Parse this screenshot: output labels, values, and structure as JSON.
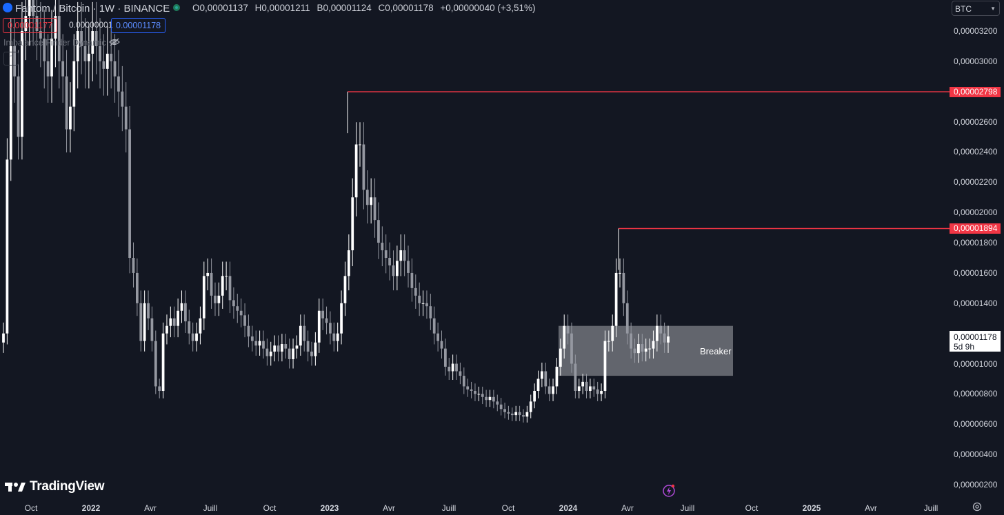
{
  "header": {
    "symbol_title": "Fantom / Bitcoin · 1W · BINANCE",
    "ohlc": {
      "open": "O0,00001137",
      "high": "H0,00001211",
      "low": "B0,00001124",
      "close": "C0,00001178",
      "change": "+0,00000040 (+3,51%)"
    }
  },
  "trade": {
    "sell_price": "0.00001177",
    "spread": "0.00000001",
    "buy_price": "0.00001178"
  },
  "indicator": {
    "name": "Imbalance Finder Dynamic"
  },
  "currency_selector": {
    "value": "BTC"
  },
  "y_axis": {
    "ticks": [
      "0,00003200",
      "0,00003000",
      "0,00002600",
      "0,00002400",
      "0,00002200",
      "0,00002000",
      "0,00001800",
      "0,00001600",
      "0,00001400",
      "0,00001000",
      "0,00000800",
      "0,00000600",
      "0,00000400",
      "0,00000200"
    ],
    "high_tag_1": "0,00002798",
    "high_tag_2": "0,00001894",
    "current_price": "0,00001178",
    "countdown": "5d 9h"
  },
  "x_axis": {
    "labels": [
      "Oct",
      "2022",
      "Avr",
      "Juill",
      "Oct",
      "2023",
      "Avr",
      "Juill",
      "Oct",
      "2024",
      "Avr",
      "Juill",
      "Oct",
      "2025",
      "Avr",
      "Juill"
    ]
  },
  "annotation": {
    "breaker_label": "Breaker"
  },
  "branding": {
    "logo_text": "TradingView"
  },
  "colors": {
    "background": "#131722",
    "bull": "#ffffff",
    "bear": "#9598a1",
    "level_line": "#f23645",
    "zone_fill": "#cfd1d6"
  },
  "icons": [
    "currency-chevron-icon",
    "visibility-off-icon",
    "collapse-chevron-icon",
    "lightning-icon",
    "settings-icon",
    "tradingview-logo-icon"
  ],
  "chart_data": {
    "type": "candlestick",
    "timeframe": "1W",
    "y_range": [
      2e-06,
      3.25e-05
    ],
    "key_levels": [
      2.798e-05,
      1.894e-05
    ],
    "zone": {
      "label": "Breaker",
      "from": 9.2e-06,
      "to": 1.25e-05
    },
    "closes": [
      1.2e-05,
      2.35e-05,
      3.1e-05,
      2.9e-05,
      2.5e-05,
      3.2e-05,
      3.3e-05,
      3.45e-05,
      3.3e-05,
      3.2e-05,
      3.15e-05,
      3e-05,
      2.9e-05,
      3.15e-05,
      3.3e-05,
      3e-05,
      2.9e-05,
      2.55e-05,
      2.7e-05,
      3e-05,
      3.2e-05,
      3.1e-05,
      3e-05,
      3.05e-05,
      3.2e-05,
      3.1e-05,
      3e-05,
      2.95e-05,
      3.05e-05,
      3e-05,
      2.9e-05,
      2.8e-05,
      2.7e-05,
      2.55e-05,
      1.7e-05,
      1.6e-05,
      1.4e-05,
      1.15e-05,
      1.4e-05,
      1.3e-05,
      1.15e-05,
      8.5e-06,
      8.2e-06,
      1.2e-05,
      1.25e-05,
      1.3e-05,
      1.25e-05,
      1.35e-05,
      1.4e-05,
      1.28e-05,
      1.2e-05,
      1.15e-05,
      1.2e-05,
      1.3e-05,
      1.58e-05,
      1.6e-05,
      1.45e-05,
      1.4e-05,
      1.45e-05,
      1.58e-05,
      1.58e-05,
      1.42e-05,
      1.38e-05,
      1.35e-05,
      1.32e-05,
      1.25e-05,
      1.18e-05,
      1.15e-05,
      1.12e-05,
      1.15e-05,
      1.1e-05,
      1.05e-05,
      1.08e-05,
      1.12e-05,
      1.08e-05,
      1.13e-05,
      1.1e-05,
      1.03e-05,
      1.1e-05,
      1.12e-05,
      1.25e-05,
      1.15e-05,
      1.08e-05,
      1.05e-05,
      1.14e-05,
      1.35e-05,
      1.3e-05,
      1.27e-05,
      1.2e-05,
      1.15e-05,
      1.2e-05,
      1.4e-05,
      1.58e-05,
      1.75e-05,
      2.1e-05,
      2.45e-05,
      2.45e-05,
      2.15e-05,
      2.05e-05,
      2.1e-05,
      1.95e-05,
      1.8e-05,
      1.75e-05,
      1.7e-05,
      1.65e-05,
      1.58e-05,
      1.68e-05,
      1.75e-05,
      1.68e-05,
      1.6e-05,
      1.5e-05,
      1.45e-05,
      1.4e-05,
      1.4e-05,
      1.38e-05,
      1.3e-05,
      1.2e-05,
      1.15e-05,
      1.1e-05,
      9.8e-06,
      9.5e-06,
      1e-05,
      9.5e-06,
      9.2e-06,
      8.5e-06,
      8.3e-06,
      8.2e-06,
      8e-06,
      8e-06,
      7.8e-06,
      7.6e-06,
      7.8e-06,
      7.5e-06,
      7.3e-06,
      7e-06,
      6.8e-06,
      6.7e-06,
      6.6e-06,
      6.8e-06,
      6.6e-06,
      6.5e-06,
      6.8e-06,
      7.5e-06,
      8.2e-06,
      9e-06,
      9.5e-06,
      8.5e-06,
      8e-06,
      8.5e-06,
      9.8e-06,
      1.1e-05,
      1.25e-05,
      1.2e-05,
      1e-05,
      8.2e-06,
      8.5e-06,
      8.8e-06,
      8.2e-06,
      8.5e-06,
      8.3e-06,
      8e-06,
      8.2e-06,
      1.15e-05,
      1.15e-05,
      1.25e-05,
      1.6e-05,
      1.6e-05,
      1.4e-05,
      1.2e-05,
      1.1e-05,
      1.07e-05,
      1.13e-05,
      1.08e-05,
      1.1e-05,
      1.1e-05,
      1.15e-05,
      1.25e-05,
      1.2e-05,
      1.14e-05,
      1.18e-05
    ],
    "x_labels": [
      "Oct",
      "2022",
      "Avr",
      "Juill",
      "Oct",
      "2023",
      "Avr",
      "Juill",
      "Oct",
      "2024",
      "Avr",
      "Juill",
      "Oct",
      "2025",
      "Avr",
      "Juill"
    ]
  }
}
